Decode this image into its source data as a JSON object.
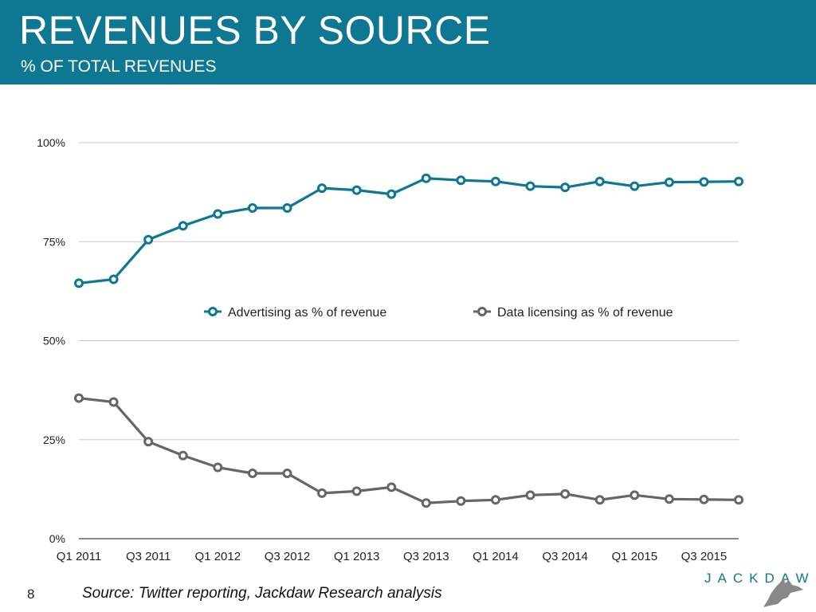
{
  "header": {
    "title": "REVENUES BY SOURCE",
    "subtitle": "% OF TOTAL REVENUES"
  },
  "footer": {
    "page_number": "8",
    "source": "Source: Twitter reporting, Jackdaw Research analysis",
    "logo_text": "JACKDAW"
  },
  "colors": {
    "header_bg": "#0e7792",
    "advertising": "#0e7792",
    "data_licensing": "#666666",
    "grid": "#c8c8c8"
  },
  "chart_data": {
    "type": "line",
    "title": "REVENUES BY SOURCE",
    "subtitle": "% OF TOTAL REVENUES",
    "x": [
      "Q1 2011",
      "Q2 2011",
      "Q3 2011",
      "Q4 2011",
      "Q1 2012",
      "Q2 2012",
      "Q3 2012",
      "Q4 2012",
      "Q1 2013",
      "Q2 2013",
      "Q3 2013",
      "Q4 2013",
      "Q1 2014",
      "Q2 2014",
      "Q3 2014",
      "Q4 2014",
      "Q1 2015",
      "Q2 2015",
      "Q3 2015",
      "Q4 2015"
    ],
    "x_tick_labels": [
      "Q1 2011",
      "Q3 2011",
      "Q1 2012",
      "Q3 2012",
      "Q1 2013",
      "Q3 2013",
      "Q1 2014",
      "Q3 2014",
      "Q1 2015",
      "Q3 2015"
    ],
    "y_tick_labels": [
      "0%",
      "25%",
      "50%",
      "75%",
      "100%"
    ],
    "ylim": [
      0,
      100
    ],
    "grid": true,
    "legend_position": "center",
    "series": [
      {
        "name": "Advertising as % of revenue",
        "color": "#0e7792",
        "values": [
          64.5,
          65.5,
          75.5,
          79,
          82,
          83.5,
          83.5,
          88.5,
          88,
          87,
          91,
          90.5,
          90.2,
          89,
          88.7,
          90.2,
          89,
          90,
          90.1,
          90.2
        ]
      },
      {
        "name": "Data licensing as % of revenue",
        "color": "#666666",
        "values": [
          35.5,
          34.5,
          24.5,
          21,
          18,
          16.5,
          16.5,
          11.5,
          12,
          13,
          9,
          9.5,
          9.8,
          11,
          11.3,
          9.8,
          11,
          10,
          9.9,
          9.8
        ]
      }
    ]
  }
}
